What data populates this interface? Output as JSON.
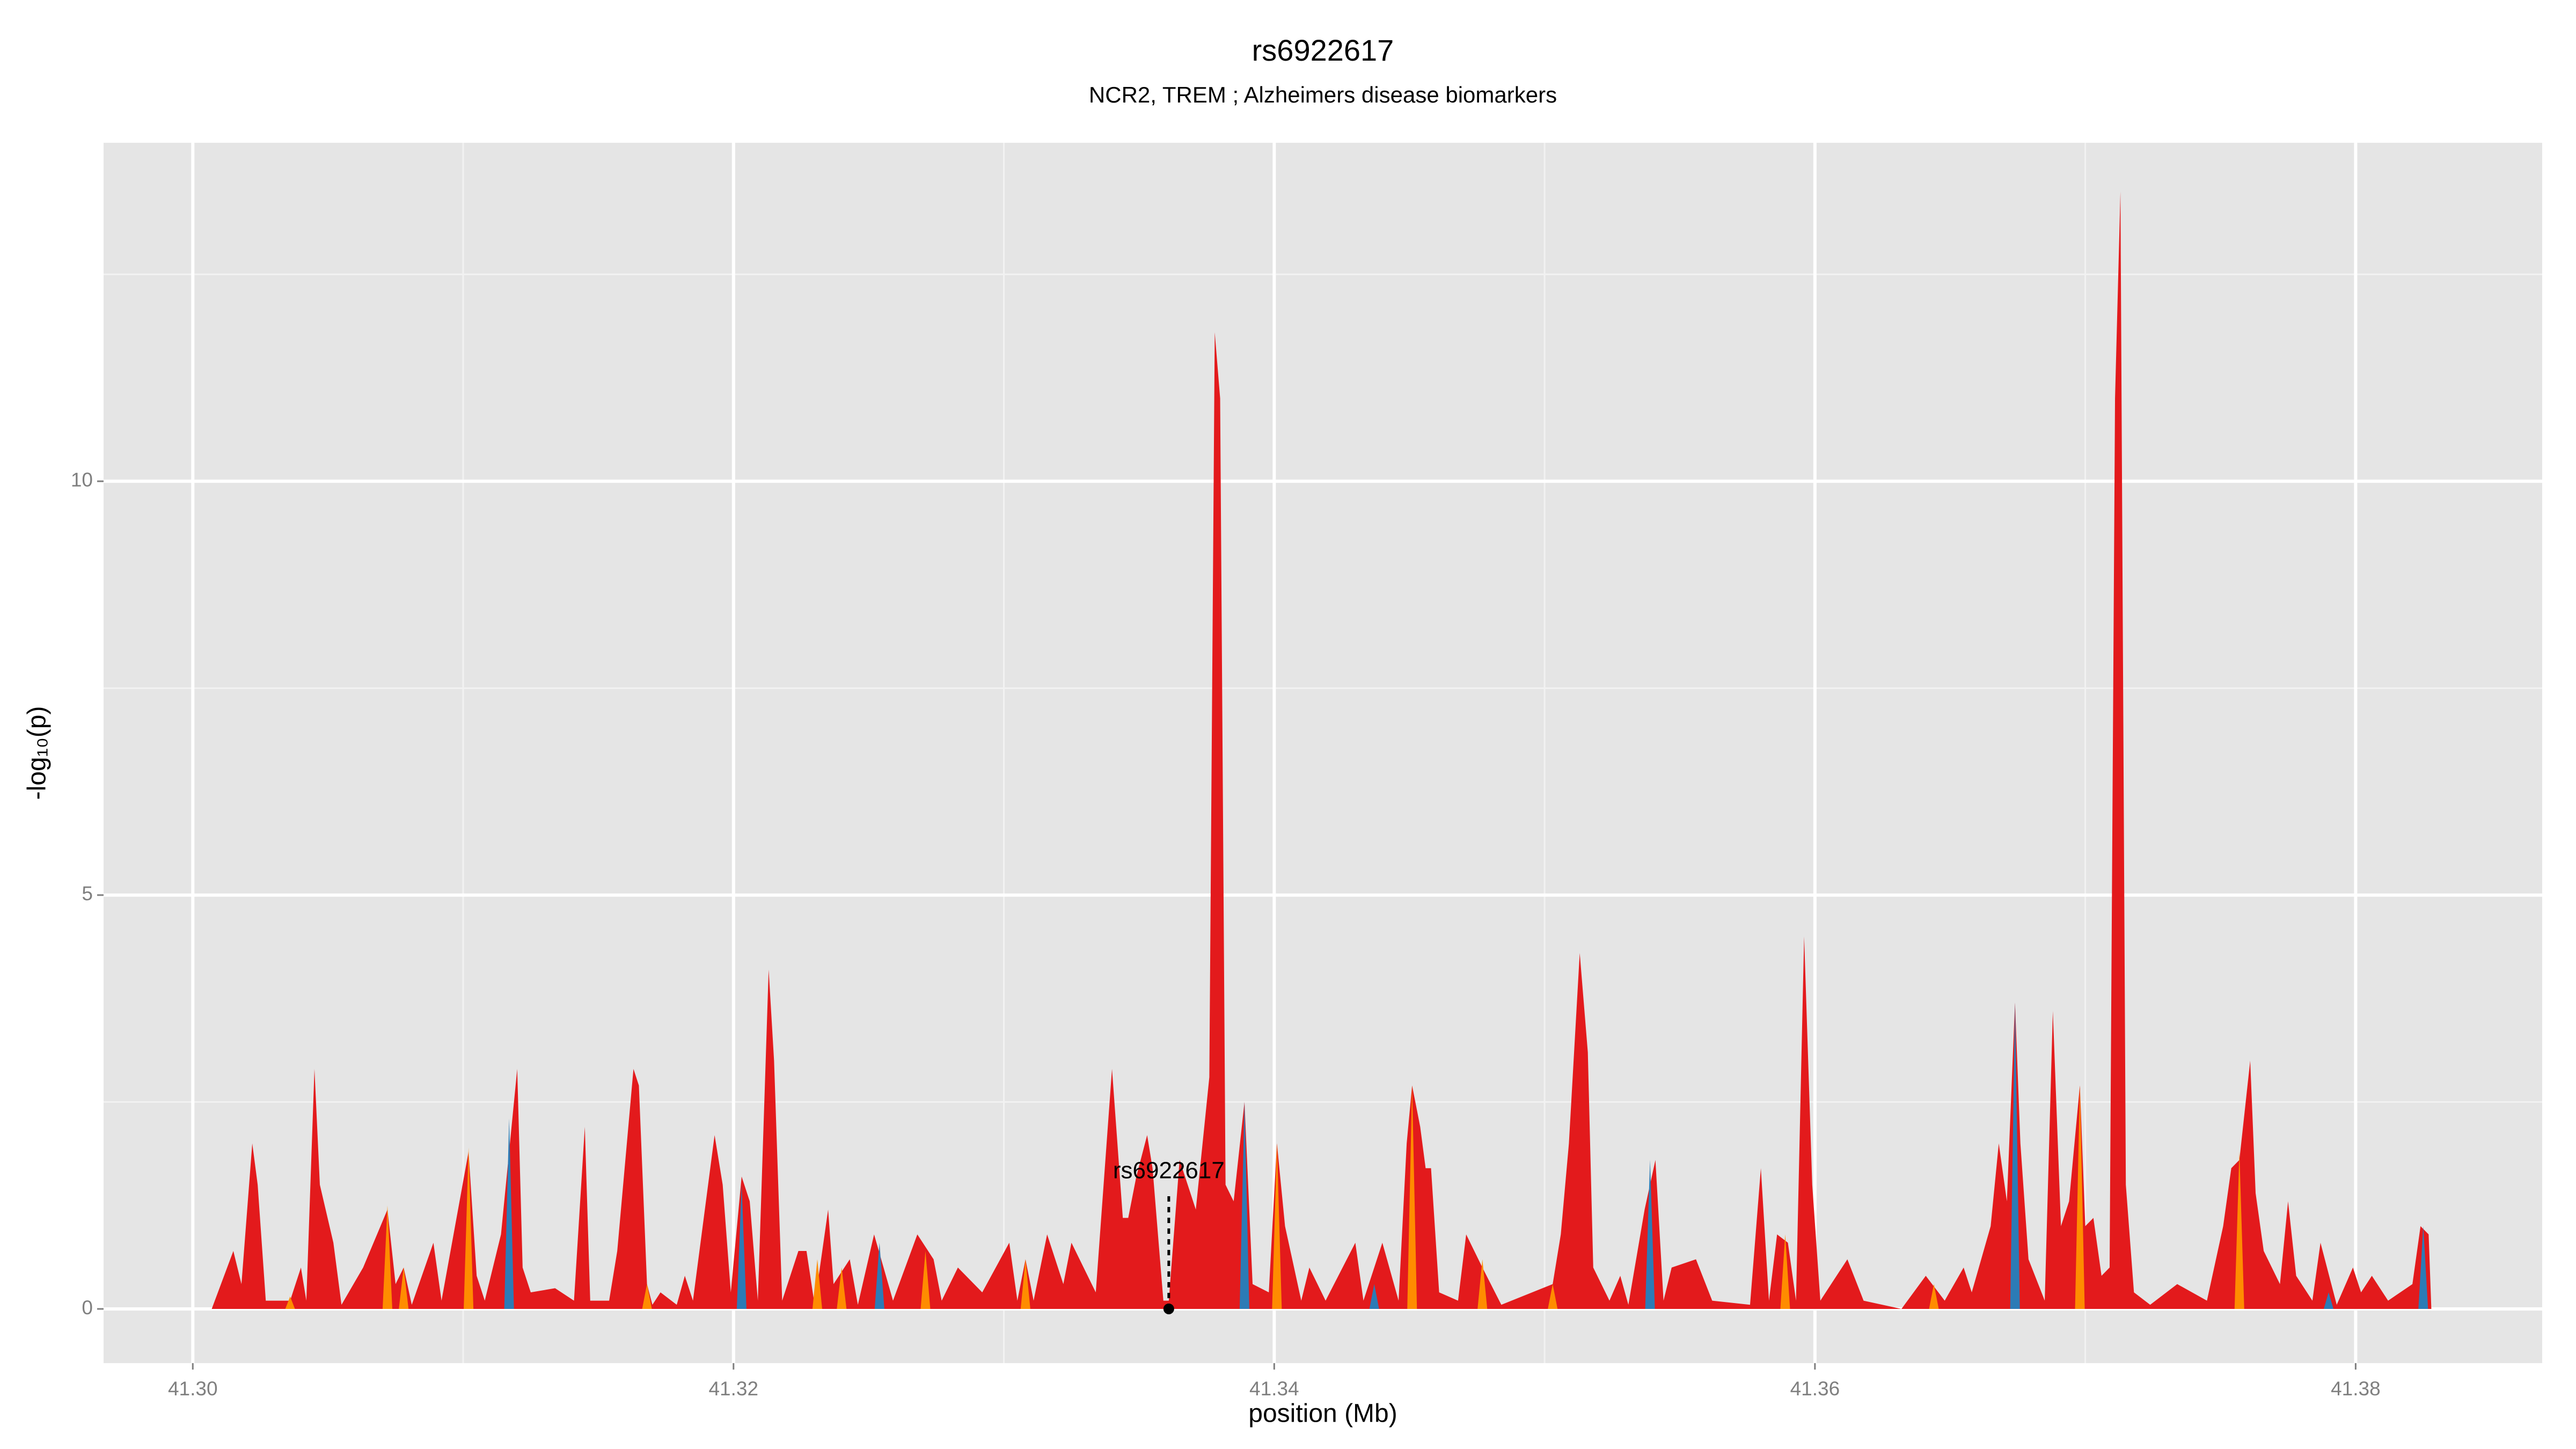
{
  "chart_data": {
    "type": "area",
    "title": "rs6922617",
    "subtitle": "NCR2, TREM ; Alzheimers disease biomarkers",
    "x_label": "position (Mb)",
    "y_label": "-log₁₀(p)",
    "xlim": [
      41.2967,
      41.3869
    ],
    "ylim": [
      -0.655,
      14.09
    ],
    "xticks": [
      {
        "value": 41.3,
        "label": "41.30"
      },
      41.32,
      41.34,
      41.36,
      41.38
    ],
    "yticks": [
      0,
      5,
      10
    ],
    "minor_xticks": [
      41.31,
      41.33,
      41.35,
      41.37
    ],
    "minor_yticks": [
      2.5,
      7.5,
      12.5
    ],
    "grid": true,
    "background": "#e5e5e5",
    "series": [
      {
        "mark": "area",
        "color": "#e31a1c",
        "x": [
          41.3007,
          41.3015,
          41.3018,
          41.3022,
          41.3024,
          41.3027,
          41.3036,
          41.304,
          41.3042,
          41.3045,
          41.3047,
          41.3052,
          41.3055,
          41.3063,
          41.3072,
          41.3075,
          41.3078,
          41.3081,
          41.3089,
          41.3092,
          41.3102,
          41.3105,
          41.3108,
          41.3114,
          41.312,
          41.3122,
          41.3125,
          41.3134,
          41.3141,
          41.3145,
          41.3147,
          41.3154,
          41.3157,
          41.3163,
          41.3165,
          41.3168,
          41.317,
          41.3173,
          41.3179,
          41.3182,
          41.3185,
          41.3193,
          41.3196,
          41.3199,
          41.3203,
          41.3206,
          41.3209,
          41.3213,
          41.3215,
          41.3218,
          41.3224,
          41.3227,
          41.323,
          41.3235,
          41.3237,
          41.3243,
          41.3246,
          41.3252,
          41.3259,
          41.3268,
          41.3274,
          41.3277,
          41.3283,
          41.3292,
          41.3302,
          41.3305,
          41.3308,
          41.3311,
          41.3316,
          41.3322,
          41.3325,
          41.3334,
          41.334,
          41.3344,
          41.3346,
          41.3349,
          41.3353,
          41.3355,
          41.3359,
          41.3361,
          41.3365,
          41.3371,
          41.3376,
          41.3378,
          41.338,
          41.3382,
          41.3385,
          41.3389,
          41.3392,
          41.3398,
          41.3401,
          41.3404,
          41.341,
          41.3413,
          41.3419,
          41.343,
          41.3433,
          41.344,
          41.3446,
          41.3449,
          41.3451,
          41.3454,
          41.3456,
          41.3458,
          41.3461,
          41.3468,
          41.3471,
          41.3477,
          41.3484,
          41.3503,
          41.3506,
          41.3509,
          41.3513,
          41.3516,
          41.3518,
          41.3524,
          41.3528,
          41.3531,
          41.3537,
          41.3541,
          41.3544,
          41.3547,
          41.3556,
          41.3562,
          41.3576,
          41.358,
          41.3583,
          41.3586,
          41.359,
          41.3593,
          41.3596,
          41.3599,
          41.3602,
          41.3612,
          41.3618,
          41.3632,
          41.3641,
          41.3648,
          41.3655,
          41.3658,
          41.3665,
          41.3668,
          41.3671,
          41.3674,
          41.3676,
          41.3679,
          41.3685,
          41.3688,
          41.3691,
          41.3694,
          41.3698,
          41.37,
          41.3703,
          41.3706,
          41.3709,
          41.3711,
          41.3713,
          41.3715,
          41.3718,
          41.3724,
          41.3734,
          41.3745,
          41.3751,
          41.3754,
          41.3757,
          41.3761,
          41.3763,
          41.3766,
          41.3772,
          41.3775,
          41.3778,
          41.3784,
          41.3787,
          41.3793,
          41.3799,
          41.3802,
          41.3806,
          41.3812,
          41.3821,
          41.3824,
          41.3827,
          41.3828
        ],
        "values": [
          0,
          0.7,
          0.3,
          2.0,
          1.5,
          0.1,
          0.1,
          0.5,
          0.1,
          2.9,
          1.5,
          0.8,
          0.05,
          0.5,
          1.2,
          0.3,
          0.5,
          0.05,
          0.8,
          0.1,
          1.9,
          0.4,
          0.1,
          0.9,
          2.9,
          0.5,
          0.2,
          0.25,
          0.1,
          2.2,
          0.1,
          0.1,
          0.7,
          2.9,
          2.7,
          0.3,
          0.05,
          0.2,
          0.05,
          0.4,
          0.1,
          2.1,
          1.5,
          0.2,
          1.6,
          1.3,
          0.1,
          4.1,
          3.0,
          0.1,
          0.7,
          0.7,
          0.05,
          1.2,
          0.3,
          0.6,
          0.05,
          0.9,
          0.1,
          0.9,
          0.6,
          0.1,
          0.5,
          0.2,
          0.8,
          0.1,
          0.6,
          0.1,
          0.9,
          0.3,
          0.8,
          0.2,
          2.9,
          1.1,
          1.1,
          1.6,
          2.1,
          1.7,
          0.1,
          0.1,
          1.8,
          1.2,
          2.8,
          11.8,
          11.0,
          1.5,
          1.3,
          2.5,
          0.3,
          0.2,
          2.0,
          1.0,
          0.1,
          0.5,
          0.1,
          0.8,
          0.1,
          0.8,
          0.1,
          2.0,
          2.7,
          2.2,
          1.7,
          1.7,
          0.2,
          0.1,
          0.9,
          0.5,
          0.05,
          0.3,
          0.9,
          2.0,
          4.3,
          3.1,
          0.5,
          0.1,
          0.4,
          0.05,
          1.2,
          1.8,
          0.1,
          0.5,
          0.6,
          0.1,
          0.05,
          1.7,
          0.1,
          0.9,
          0.8,
          0.1,
          4.5,
          1.5,
          0.1,
          0.6,
          0.1,
          0,
          0.4,
          0.1,
          0.5,
          0.2,
          1.0,
          2.0,
          1.3,
          3.7,
          2.0,
          0.6,
          0.1,
          3.6,
          1.0,
          1.3,
          2.7,
          1.0,
          1.1,
          0.4,
          0.5,
          11.0,
          13.5,
          1.5,
          0.2,
          0.05,
          0.3,
          0.1,
          1.0,
          1.7,
          1.8,
          3.0,
          1.4,
          0.7,
          0.3,
          1.3,
          0.4,
          0.1,
          0.8,
          0.05,
          0.5,
          0.2,
          0.4,
          0.1,
          0.3,
          1.0,
          0.9,
          0
        ]
      },
      {
        "mark": "spike",
        "color": "#ff8c00",
        "x": [
          41.3036,
          41.3072,
          41.3078,
          41.3102,
          41.3168,
          41.3231,
          41.324,
          41.3271,
          41.3308,
          41.3401,
          41.3451,
          41.3477,
          41.3503,
          41.3589,
          41.3644,
          41.3698,
          41.3757
        ],
        "values": [
          0.15,
          1.25,
          0.5,
          1.95,
          0.3,
          0.6,
          0.5,
          0.7,
          0.6,
          2.0,
          2.7,
          0.6,
          0.3,
          0.9,
          0.3,
          2.7,
          1.9
        ]
      },
      {
        "mark": "spike",
        "color": "#2c7bb6",
        "x": [
          41.3117,
          41.3203,
          41.3254,
          41.3389,
          41.3437,
          41.3539,
          41.3674,
          41.379,
          41.3825
        ],
        "values": [
          2.3,
          1.5,
          0.8,
          2.5,
          0.3,
          1.8,
          3.7,
          0.2,
          1.0
        ]
      }
    ],
    "annotation": {
      "text": "rs6922617",
      "x": 41.3361,
      "y": 0
    }
  }
}
